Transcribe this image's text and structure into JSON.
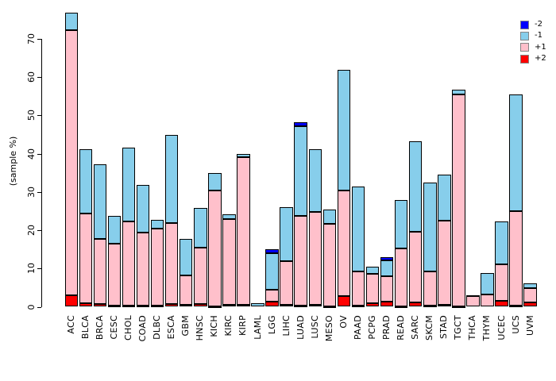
{
  "chart_data": {
    "type": "bar",
    "stacked": true,
    "title": "",
    "xlabel": "",
    "ylabel": "(sample %)",
    "ylim": [
      0,
      77
    ],
    "yticks": [
      0,
      10,
      20,
      30,
      40,
      50,
      60,
      70
    ],
    "grid": false,
    "legend_position": "top-right",
    "legend_order": [
      "-2",
      "-1",
      "+1",
      "+2"
    ],
    "categories": [
      "ACC",
      "BLCA",
      "BRCA",
      "CESC",
      "CHOL",
      "COAD",
      "DLBC",
      "ESCA",
      "GBM",
      "HNSC",
      "KICH",
      "KIRC",
      "KIRP",
      "LAML",
      "LGG",
      "LIHC",
      "LUAD",
      "LUSC",
      "MESO",
      "OV",
      "PAAD",
      "PCPG",
      "PRAD",
      "READ",
      "SARC",
      "SKCM",
      "STAD",
      "TGCT",
      "THCA",
      "THYM",
      "UCEC",
      "UCS",
      "UVM"
    ],
    "series": [
      {
        "name": "+2",
        "color": "#FF0000",
        "values": [
          3.0,
          0.9,
          0.7,
          0.3,
          0.3,
          0.3,
          0.3,
          0.8,
          0.5,
          0.7,
          0.2,
          0.5,
          0.6,
          0,
          1.4,
          0.6,
          0.3,
          0.5,
          0.2,
          2.8,
          0.4,
          0.9,
          1.3,
          0.2,
          1.1,
          0.4,
          0.5,
          0.2,
          0,
          0,
          1.5,
          0.3,
          1.2
        ]
      },
      {
        "name": "+1",
        "color": "#FFC0CB",
        "values": [
          69.2,
          23.4,
          17.1,
          16.2,
          21.9,
          19.0,
          20.1,
          21.1,
          7.6,
          14.7,
          30.1,
          22.4,
          38.5,
          0,
          3.0,
          11.4,
          23.5,
          24.2,
          21.5,
          27.6,
          8.8,
          7.6,
          6.7,
          15.0,
          18.4,
          8.9,
          21.9,
          55.2,
          2.9,
          3.3,
          9.6,
          24.6,
          3.7
        ]
      },
      {
        "name": "-1",
        "color": "#87CEEB",
        "values": [
          4.7,
          16.9,
          19.4,
          7.3,
          19.4,
          12.6,
          2.4,
          22.9,
          9.7,
          10.5,
          4.7,
          1.3,
          0.8,
          1.0,
          9.5,
          14.0,
          23.4,
          16.5,
          3.7,
          31.4,
          22.3,
          1.9,
          4.2,
          12.7,
          23.7,
          23.1,
          12.2,
          1.2,
          0.2,
          5.6,
          11.2,
          30.5,
          1.2
        ]
      },
      {
        "name": "-2",
        "color": "#0000FF",
        "values": [
          0,
          0,
          0,
          0,
          0,
          0,
          0,
          0,
          0,
          0,
          0,
          0,
          0,
          0,
          1.2,
          0,
          1.0,
          0,
          0,
          0,
          0,
          0,
          0.8,
          0,
          0,
          0,
          0,
          0,
          0,
          0,
          0,
          0,
          0
        ]
      }
    ],
    "totals": [
      76.9,
      41.2,
      37.2,
      23.8,
      41.6,
      31.9,
      22.8,
      44.8,
      17.8,
      25.9,
      35.0,
      24.2,
      39.9,
      1.0,
      15.1,
      26.0,
      48.2,
      41.2,
      25.4,
      61.8,
      31.5,
      10.4,
      13.0,
      27.9,
      43.2,
      32.4,
      34.6,
      56.6,
      3.1,
      8.9,
      22.3,
      55.4,
      6.1
    ]
  }
}
